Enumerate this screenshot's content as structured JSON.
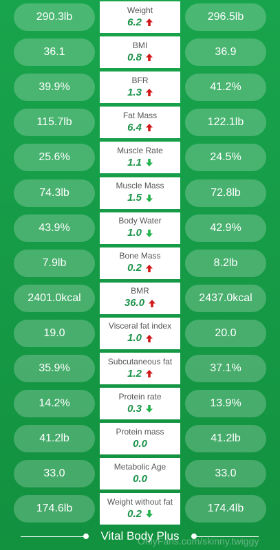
{
  "colors": {
    "background": "#169a46",
    "up": "#d01818",
    "down": "#22b24c",
    "value": "#1a9248"
  },
  "metrics": [
    {
      "name": "Weight",
      "left": "290.3lb",
      "change": "6.2",
      "trend": "up",
      "right": "296.5lb"
    },
    {
      "name": "BMI",
      "left": "36.1",
      "change": "0.8",
      "trend": "up",
      "right": "36.9"
    },
    {
      "name": "BFR",
      "left": "39.9%",
      "change": "1.3",
      "trend": "up",
      "right": "41.2%"
    },
    {
      "name": "Fat Mass",
      "left": "115.7lb",
      "change": "6.4",
      "trend": "up",
      "right": "122.1lb"
    },
    {
      "name": "Muscle Rate",
      "left": "25.6%",
      "change": "1.1",
      "trend": "down",
      "right": "24.5%"
    },
    {
      "name": "Muscle Mass",
      "left": "74.3lb",
      "change": "1.5",
      "trend": "down",
      "right": "72.8lb"
    },
    {
      "name": "Body Water",
      "left": "43.9%",
      "change": "1.0",
      "trend": "down",
      "right": "42.9%"
    },
    {
      "name": "Bone Mass",
      "left": "7.9lb",
      "change": "0.2",
      "trend": "up",
      "right": "8.2lb"
    },
    {
      "name": "BMR",
      "left": "2401.0kcal",
      "change": "36.0",
      "trend": "up",
      "right": "2437.0kcal"
    },
    {
      "name": "Visceral fat index",
      "left": "19.0",
      "change": "1.0",
      "trend": "up",
      "right": "20.0"
    },
    {
      "name": "Subcutaneous fat",
      "left": "35.9%",
      "change": "1.2",
      "trend": "up",
      "right": "37.1%"
    },
    {
      "name": "Protein rate",
      "left": "14.2%",
      "change": "0.3",
      "trend": "down",
      "right": "13.9%"
    },
    {
      "name": "Protein mass",
      "left": "41.2lb",
      "change": "0.0",
      "trend": "none",
      "right": "41.2lb"
    },
    {
      "name": "Metabolic Age",
      "left": "33.0",
      "change": "0.0",
      "trend": "none",
      "right": "33.0"
    },
    {
      "name": "Weight without fat",
      "left": "174.6lb",
      "change": "0.2",
      "trend": "down",
      "right": "174.4lb"
    }
  ],
  "footer": {
    "title": "Vital Body Plus",
    "watermark": "OnlyFans.com/skinny.twiggy"
  }
}
